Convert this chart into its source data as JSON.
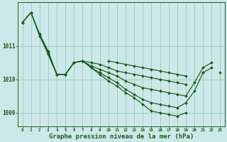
{
  "background_color": "#cce8e8",
  "grid_color": "#99ccbb",
  "line_color": "#1a5c1a",
  "marker_color": "#1a5c1a",
  "title": "Graphe pression niveau de la mer (hPa)",
  "xlabel_fontsize": 6.5,
  "xlim": [
    -0.5,
    23.5
  ],
  "ylim": [
    1008.6,
    1012.3
  ],
  "yticks": [
    1009,
    1010,
    1011
  ],
  "xticks": [
    0,
    1,
    2,
    3,
    4,
    5,
    6,
    7,
    8,
    9,
    10,
    11,
    12,
    13,
    14,
    15,
    16,
    17,
    18,
    19,
    20,
    21,
    22,
    23
  ],
  "series": [
    [
      1011.7,
      1012.0,
      1011.35,
      1010.85,
      1010.15,
      1010.15,
      1010.5,
      1010.55,
      1010.5,
      1010.45,
      1010.35,
      1010.25,
      1010.2,
      1010.15,
      1010.1,
      1010.05,
      1010.0,
      1009.95,
      1009.9,
      1009.85,
      null,
      null,
      null,
      null
    ],
    [
      1011.7,
      1012.0,
      1011.35,
      1010.8,
      1010.15,
      1010.15,
      1010.5,
      1010.55,
      1010.4,
      1010.3,
      1010.2,
      1010.1,
      1009.95,
      1009.85,
      1009.75,
      1009.7,
      1009.65,
      1009.6,
      1009.55,
      1009.5,
      1009.9,
      1010.35,
      1010.5,
      null
    ],
    [
      1011.7,
      1012.0,
      1011.3,
      1010.75,
      1010.15,
      1010.15,
      1010.5,
      1010.55,
      1010.35,
      1010.2,
      1010.05,
      1009.9,
      1009.7,
      1009.55,
      1009.4,
      1009.3,
      1009.25,
      1009.2,
      1009.15,
      1009.3,
      1009.65,
      1010.2,
      1010.35,
      null
    ],
    [
      null,
      null,
      null,
      1010.75,
      1010.15,
      1010.15,
      1010.5,
      1010.55,
      1010.35,
      1010.15,
      1009.95,
      1009.8,
      1009.6,
      1009.45,
      1009.25,
      1009.05,
      1009.0,
      1008.95,
      1008.9,
      1009.0,
      null,
      null,
      null,
      null
    ],
    [
      null,
      null,
      null,
      null,
      null,
      null,
      null,
      null,
      null,
      null,
      1010.55,
      1010.5,
      1010.45,
      1010.4,
      1010.35,
      1010.3,
      1010.25,
      1010.2,
      1010.15,
      1010.1,
      null,
      null,
      null,
      1010.2
    ]
  ]
}
